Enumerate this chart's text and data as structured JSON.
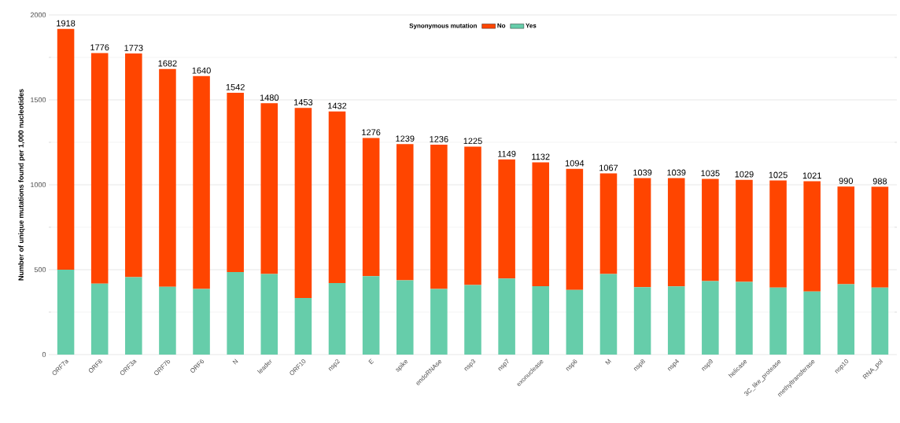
{
  "chart_data": {
    "type": "bar",
    "stacked": true,
    "ylabel": "Number of unique mutations found per 1,000 nucleotides",
    "legend_title": "Synonymous mutation",
    "categories": [
      "ORF7a",
      "ORF8",
      "ORF3a",
      "ORF7b",
      "ORF6",
      "N",
      "leader",
      "ORF10",
      "nsp2",
      "E",
      "spike",
      "endoRNAse",
      "nsp3",
      "nsp7",
      "exonuclease",
      "nsp6",
      "M",
      "nsp8",
      "nsp4",
      "nsp9",
      "helicase",
      "3C_like_protease",
      "methyltransferase",
      "nsp10",
      "RNA_pol"
    ],
    "series": [
      {
        "name": "Yes",
        "color": "#66cdaa",
        "values": [
          500,
          418,
          456,
          399,
          386,
          486,
          474,
          333,
          421,
          462,
          437,
          386,
          410,
          448,
          403,
          381,
          474,
          397,
          402,
          433,
          428,
          395,
          372,
          414,
          395
        ]
      },
      {
        "name": "No",
        "color": "#ff4500",
        "values": [
          1418,
          1358,
          1317,
          1283,
          1254,
          1056,
          1006,
          1120,
          1011,
          814,
          802,
          850,
          815,
          701,
          729,
          713,
          593,
          642,
          637,
          602,
          601,
          630,
          649,
          576,
          593
        ]
      }
    ],
    "totals": [
      "1918",
      "1776",
      "1773",
      "1682",
      "1640",
      "1542",
      "1480",
      "1453",
      "1432",
      "1276",
      "1239",
      "1236",
      "1225",
      "1149",
      "1132",
      "1094",
      "1067",
      "1039",
      "1039",
      "1035",
      "1029",
      "1025",
      "1021",
      "990",
      "988"
    ],
    "ylim": [
      0,
      2000
    ],
    "yticks": [
      0,
      500,
      1000,
      1500,
      2000
    ],
    "grid": "y",
    "legend": "top"
  }
}
